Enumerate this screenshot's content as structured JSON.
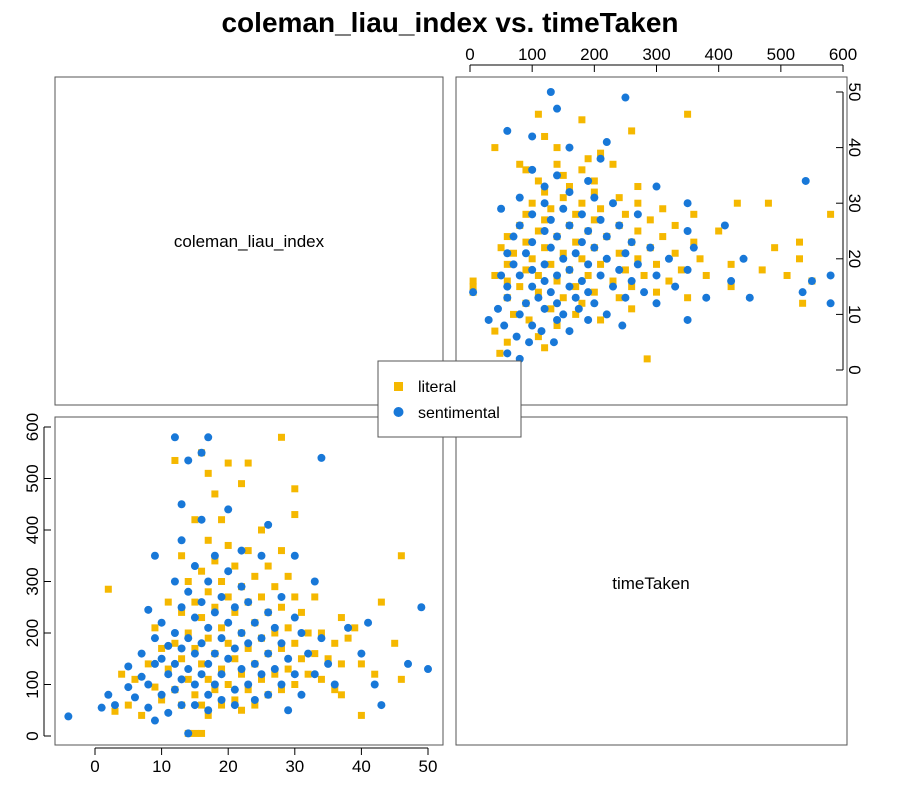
{
  "chart_data": {
    "type": "scatter",
    "title": "coleman_liau_index vs. timeTaken",
    "variables": [
      "coleman_liau_index",
      "timeTaken"
    ],
    "ranges": {
      "coleman_liau_index": [
        -5,
        52
      ],
      "timeTaken": [
        -10,
        600
      ]
    },
    "ticks": {
      "coleman_liau_index": [
        0,
        10,
        20,
        30,
        40,
        50
      ],
      "timeTaken": [
        0,
        100,
        200,
        300,
        400,
        500,
        600
      ]
    },
    "legend": {
      "position": "center",
      "entries": [
        "literal",
        "sentimental"
      ]
    },
    "colors": {
      "literal": "#f5b800",
      "sentimental": "#1878d8"
    },
    "series": [
      {
        "name": "literal",
        "marker": "square",
        "points": [
          [
            2,
            285
          ],
          [
            3,
            48
          ],
          [
            4,
            120
          ],
          [
            5,
            60
          ],
          [
            6,
            110
          ],
          [
            7,
            40
          ],
          [
            8,
            140
          ],
          [
            9,
            95
          ],
          [
            9,
            210
          ],
          [
            10,
            170
          ],
          [
            10,
            70
          ],
          [
            11,
            260
          ],
          [
            11,
            130
          ],
          [
            12,
            535
          ],
          [
            12,
            180
          ],
          [
            12,
            90
          ],
          [
            13,
            350
          ],
          [
            13,
            240
          ],
          [
            13,
            150
          ],
          [
            13,
            60
          ],
          [
            14,
            300
          ],
          [
            14,
            200
          ],
          [
            14,
            110
          ],
          [
            14,
            5
          ],
          [
            15,
            5
          ],
          [
            15,
            420
          ],
          [
            15,
            260
          ],
          [
            15,
            170
          ],
          [
            15,
            80
          ],
          [
            16,
            5
          ],
          [
            16,
            550
          ],
          [
            16,
            320
          ],
          [
            16,
            230
          ],
          [
            16,
            140
          ],
          [
            16,
            60
          ],
          [
            17,
            510
          ],
          [
            17,
            380
          ],
          [
            17,
            280
          ],
          [
            17,
            190
          ],
          [
            17,
            110
          ],
          [
            17,
            40
          ],
          [
            18,
            470
          ],
          [
            18,
            340
          ],
          [
            18,
            250
          ],
          [
            18,
            160
          ],
          [
            18,
            90
          ],
          [
            19,
            420
          ],
          [
            19,
            300
          ],
          [
            19,
            210
          ],
          [
            19,
            130
          ],
          [
            19,
            60
          ],
          [
            20,
            530
          ],
          [
            20,
            370
          ],
          [
            20,
            270
          ],
          [
            20,
            180
          ],
          [
            20,
            100
          ],
          [
            21,
            330
          ],
          [
            21,
            240
          ],
          [
            21,
            150
          ],
          [
            21,
            70
          ],
          [
            22,
            490
          ],
          [
            22,
            290
          ],
          [
            22,
            200
          ],
          [
            22,
            120
          ],
          [
            22,
            50
          ],
          [
            23,
            530
          ],
          [
            23,
            360
          ],
          [
            23,
            260
          ],
          [
            23,
            170
          ],
          [
            23,
            90
          ],
          [
            24,
            310
          ],
          [
            24,
            220
          ],
          [
            24,
            140
          ],
          [
            24,
            60
          ],
          [
            25,
            400
          ],
          [
            25,
            270
          ],
          [
            25,
            190
          ],
          [
            25,
            110
          ],
          [
            26,
            330
          ],
          [
            26,
            240
          ],
          [
            26,
            160
          ],
          [
            26,
            80
          ],
          [
            27,
            290
          ],
          [
            27,
            200
          ],
          [
            27,
            120
          ],
          [
            28,
            580
          ],
          [
            28,
            360
          ],
          [
            28,
            250
          ],
          [
            28,
            170
          ],
          [
            28,
            90
          ],
          [
            29,
            310
          ],
          [
            29,
            210
          ],
          [
            29,
            130
          ],
          [
            30,
            480
          ],
          [
            30,
            430
          ],
          [
            30,
            270
          ],
          [
            30,
            180
          ],
          [
            30,
            100
          ],
          [
            31,
            240
          ],
          [
            31,
            150
          ],
          [
            32,
            200
          ],
          [
            32,
            120
          ],
          [
            33,
            270
          ],
          [
            33,
            160
          ],
          [
            34,
            200
          ],
          [
            34,
            110
          ],
          [
            35,
            150
          ],
          [
            36,
            180
          ],
          [
            36,
            90
          ],
          [
            37,
            230
          ],
          [
            37,
            140
          ],
          [
            37,
            80
          ],
          [
            38,
            190
          ],
          [
            39,
            210
          ],
          [
            40,
            140
          ],
          [
            40,
            40
          ],
          [
            42,
            120
          ],
          [
            43,
            260
          ],
          [
            45,
            180
          ],
          [
            46,
            350
          ],
          [
            46,
            110
          ]
        ]
      },
      {
        "name": "sentimental",
        "marker": "circle",
        "points": [
          [
            -4,
            38
          ],
          [
            1,
            55
          ],
          [
            2,
            80
          ],
          [
            3,
            60
          ],
          [
            5,
            95
          ],
          [
            5,
            135
          ],
          [
            6,
            75
          ],
          [
            7,
            115
          ],
          [
            7,
            160
          ],
          [
            8,
            245
          ],
          [
            8,
            55
          ],
          [
            8,
            100
          ],
          [
            9,
            350
          ],
          [
            9,
            30
          ],
          [
            9,
            140
          ],
          [
            9,
            190
          ],
          [
            10,
            80
          ],
          [
            10,
            150
          ],
          [
            10,
            220
          ],
          [
            11,
            120
          ],
          [
            11,
            175
          ],
          [
            11,
            45
          ],
          [
            12,
            580
          ],
          [
            12,
            90
          ],
          [
            12,
            140
          ],
          [
            12,
            200
          ],
          [
            12,
            300
          ],
          [
            13,
            450
          ],
          [
            13,
            60
          ],
          [
            13,
            110
          ],
          [
            13,
            170
          ],
          [
            13,
            250
          ],
          [
            13,
            380
          ],
          [
            14,
            535
          ],
          [
            14,
            5
          ],
          [
            14,
            130
          ],
          [
            14,
            190
          ],
          [
            14,
            280
          ],
          [
            15,
            100
          ],
          [
            15,
            160
          ],
          [
            15,
            230
          ],
          [
            15,
            330
          ],
          [
            15,
            60
          ],
          [
            16,
            550
          ],
          [
            16,
            120
          ],
          [
            16,
            180
          ],
          [
            16,
            260
          ],
          [
            16,
            420
          ],
          [
            17,
            580
          ],
          [
            17,
            80
          ],
          [
            17,
            140
          ],
          [
            17,
            210
          ],
          [
            17,
            300
          ],
          [
            17,
            50
          ],
          [
            18,
            100
          ],
          [
            18,
            160
          ],
          [
            18,
            240
          ],
          [
            18,
            350
          ],
          [
            19,
            120
          ],
          [
            19,
            190
          ],
          [
            19,
            270
          ],
          [
            19,
            70
          ],
          [
            20,
            440
          ],
          [
            20,
            150
          ],
          [
            20,
            220
          ],
          [
            20,
            320
          ],
          [
            21,
            90
          ],
          [
            21,
            170
          ],
          [
            21,
            250
          ],
          [
            21,
            60
          ],
          [
            22,
            130
          ],
          [
            22,
            200
          ],
          [
            22,
            290
          ],
          [
            22,
            360
          ],
          [
            23,
            100
          ],
          [
            23,
            180
          ],
          [
            23,
            260
          ],
          [
            24,
            140
          ],
          [
            24,
            220
          ],
          [
            24,
            70
          ],
          [
            25,
            350
          ],
          [
            25,
            120
          ],
          [
            25,
            190
          ],
          [
            26,
            410
          ],
          [
            26,
            160
          ],
          [
            26,
            240
          ],
          [
            26,
            80
          ],
          [
            27,
            130
          ],
          [
            27,
            210
          ],
          [
            28,
            100
          ],
          [
            28,
            180
          ],
          [
            28,
            270
          ],
          [
            29,
            150
          ],
          [
            29,
            50
          ],
          [
            30,
            350
          ],
          [
            30,
            230
          ],
          [
            30,
            120
          ],
          [
            31,
            200
          ],
          [
            31,
            80
          ],
          [
            32,
            160
          ],
          [
            33,
            300
          ],
          [
            33,
            120
          ],
          [
            34,
            540
          ],
          [
            34,
            190
          ],
          [
            35,
            140
          ],
          [
            36,
            100
          ],
          [
            38,
            210
          ],
          [
            40,
            160
          ],
          [
            41,
            220
          ],
          [
            42,
            100
          ],
          [
            43,
            60
          ],
          [
            47,
            140
          ],
          [
            49,
            250
          ],
          [
            50,
            130
          ]
        ]
      }
    ]
  }
}
